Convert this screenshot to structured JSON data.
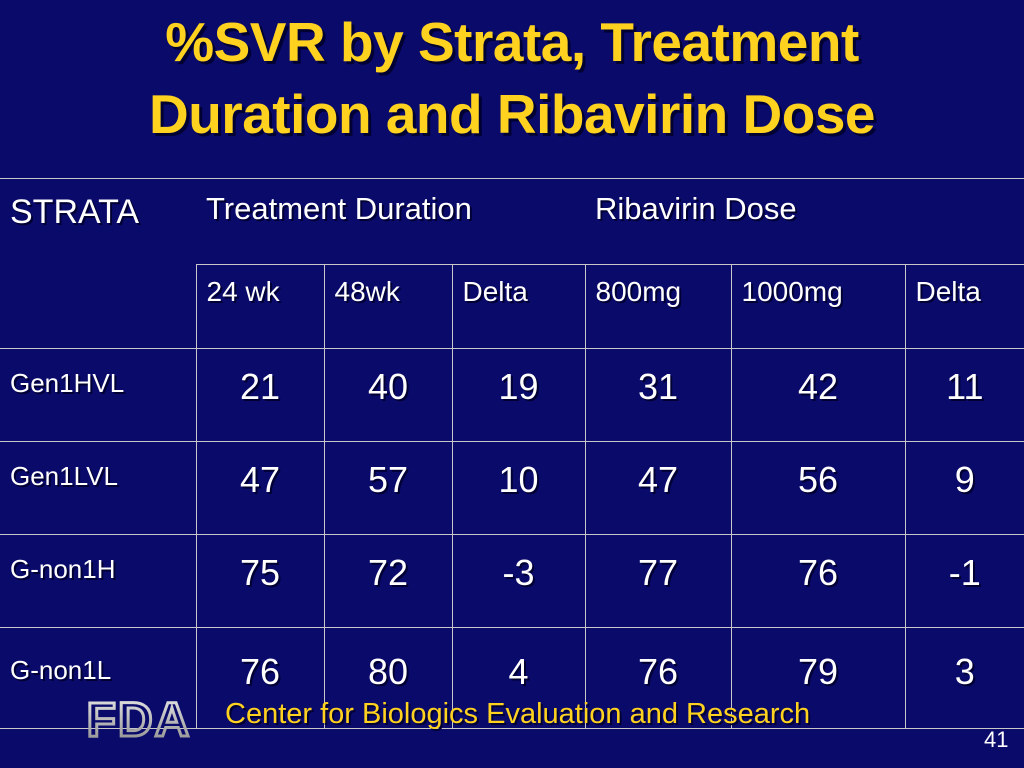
{
  "title": {
    "line1": "%SVR by Strata, Treatment",
    "line2": "Duration and Ribavirin Dose"
  },
  "table": {
    "strata_header": "STRATA",
    "treatment_header": "Treatment Duration",
    "ribavirin_header": "Ribavirin Dose",
    "subheaders": [
      "24 wk",
      "48wk",
      "Delta",
      "800mg",
      "1000mg",
      "Delta"
    ],
    "rows": [
      {
        "label": "Gen1HVL",
        "values": [
          "21",
          "40",
          "19",
          "31",
          "42",
          "11"
        ]
      },
      {
        "label": "Gen1LVL",
        "values": [
          "47",
          "57",
          "10",
          "47",
          "56",
          "9"
        ]
      },
      {
        "label": "G-non1H",
        "values": [
          "75",
          "72",
          "-3",
          "77",
          "76",
          "-1"
        ]
      },
      {
        "label": "G-non1L",
        "values": [
          "76",
          "80",
          "4",
          "76",
          "79",
          "3"
        ]
      }
    ]
  },
  "footer": {
    "logo_text": "FDA",
    "center_text": "Center for Biologics Evaluation and Research",
    "page_number": "41"
  },
  "colors": {
    "background": "#0a0a6b",
    "title": "#ffd21f",
    "text": "#ffffff"
  }
}
